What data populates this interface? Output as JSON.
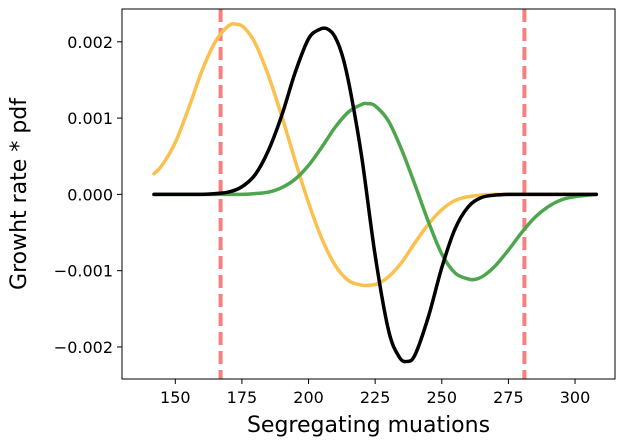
{
  "chart_data": {
    "type": "line",
    "title": "",
    "xlabel": "Segregating muations",
    "ylabel": "Growht rate * pdf",
    "xlim": [
      130,
      315
    ],
    "ylim": [
      -0.00242,
      0.00243
    ],
    "xticks": [
      150,
      175,
      200,
      225,
      250,
      275,
      300
    ],
    "xtick_labels": [
      "150",
      "175",
      "200",
      "225",
      "250",
      "275",
      "300"
    ],
    "yticks": [
      -0.002,
      -0.001,
      0.0,
      0.001,
      0.002
    ],
    "ytick_labels": [
      "−0.002",
      "−0.001",
      "0.000",
      "0.001",
      "0.002"
    ],
    "vlines": [
      {
        "x": 167,
        "color": "#f77f7f",
        "style": "dashed"
      },
      {
        "x": 281,
        "color": "#f77f7f",
        "style": "dashed"
      }
    ],
    "series": [
      {
        "color": "#fbc04f",
        "x": [
          142,
          145,
          150,
          155,
          160,
          165,
          170,
          173,
          176,
          180,
          185,
          190,
          195,
          200,
          205,
          210,
          215,
          220,
          223,
          226,
          230,
          235,
          240,
          245,
          250,
          255,
          260,
          265,
          270,
          275,
          280,
          285,
          290,
          295,
          300,
          305,
          308
        ],
        "y": [
          0.00027,
          0.00038,
          0.00068,
          0.00113,
          0.00162,
          0.002,
          0.00221,
          0.00223,
          0.00218,
          0.00198,
          0.00155,
          0.00102,
          0.00044,
          -0.00011,
          -0.00058,
          -0.00093,
          -0.00113,
          -0.00119,
          -0.00119,
          -0.00117,
          -0.00108,
          -0.00089,
          -0.00063,
          -0.00039,
          -0.0002,
          -8e-05,
          -3e-05,
          -1e-05,
          0.0,
          0.0,
          0.0,
          0.0,
          0.0,
          0.0,
          0.0,
          0.0,
          0.0
        ]
      },
      {
        "color": "#4da64d",
        "x": [
          142,
          150,
          160,
          165,
          170,
          175,
          180,
          185,
          190,
          195,
          200,
          205,
          210,
          215,
          220,
          222,
          225,
          230,
          235,
          240,
          245,
          250,
          255,
          260,
          263,
          266,
          270,
          275,
          280,
          285,
          290,
          295,
          300,
          308
        ],
        "y": [
          0.0,
          0.0,
          0.0,
          0.0,
          0.0,
          0.0,
          1e-05,
          3e-05,
          9e-05,
          0.0002,
          0.00038,
          0.00062,
          0.00088,
          0.00108,
          0.00118,
          0.00119,
          0.00116,
          0.00096,
          0.00058,
          0.00012,
          -0.00036,
          -0.00078,
          -0.00103,
          -0.00111,
          -0.00111,
          -0.00106,
          -0.00094,
          -0.00073,
          -0.0005,
          -0.0003,
          -0.00016,
          -7e-05,
          -3e-05,
          0.0
        ]
      },
      {
        "color": "#000000",
        "x": [
          142,
          150,
          160,
          165,
          170,
          175,
          180,
          185,
          190,
          195,
          200,
          204,
          207,
          210,
          213,
          216,
          220,
          225,
          230,
          234,
          237,
          240,
          245,
          250,
          255,
          260,
          265,
          270,
          275,
          280,
          285,
          290,
          300,
          308
        ],
        "y": [
          0.0,
          0.0,
          0.0,
          1e-05,
          3e-05,
          0.0001,
          0.00026,
          0.00058,
          0.00104,
          0.0016,
          0.00204,
          0.00216,
          0.00217,
          0.00206,
          0.00178,
          0.0013,
          0.00048,
          -0.0008,
          -0.00178,
          -0.00213,
          -0.00219,
          -0.0021,
          -0.0016,
          -0.00096,
          -0.00045,
          -0.00016,
          -4e-05,
          -1e-05,
          0.0,
          0.0,
          0.0,
          0.0,
          0.0,
          0.0
        ]
      }
    ]
  }
}
